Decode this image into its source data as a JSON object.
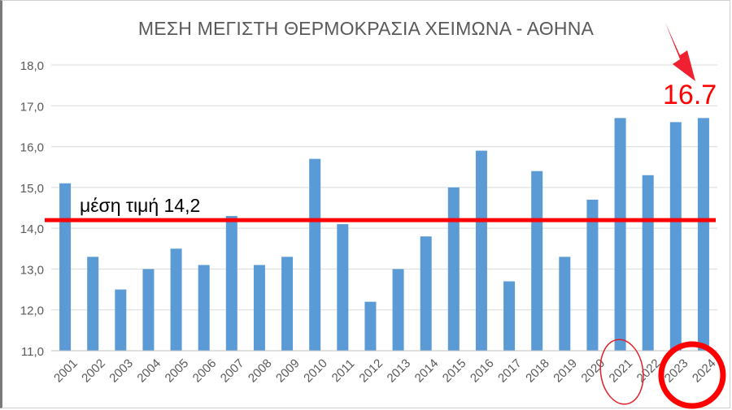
{
  "chart_data": {
    "type": "bar",
    "title": "ΜΕΣΗ ΜΕΓΙΣΤΗ ΘΕΡΜΟΚΡΑΣΙΑ ΧΕΙΜΩΝΑ -  ΑΘΗΝΑ",
    "categories": [
      "2001",
      "2002",
      "2003",
      "2004",
      "2005",
      "2006",
      "2007",
      "2008",
      "2009",
      "2010",
      "2011",
      "2012",
      "2013",
      "2014",
      "2015",
      "2016",
      "2017",
      "2018",
      "2019",
      "2020",
      "2021",
      "2022",
      "2023",
      "2024"
    ],
    "values": [
      15.1,
      13.3,
      12.5,
      13.0,
      13.5,
      13.1,
      14.3,
      13.1,
      13.3,
      15.7,
      14.1,
      12.2,
      13.0,
      13.8,
      15.0,
      15.9,
      12.7,
      15.4,
      13.3,
      14.7,
      16.7,
      15.3,
      16.6,
      16.7
    ],
    "ylim": [
      11.0,
      18.0
    ],
    "yticks": [
      "11,0",
      "12,0",
      "13,0",
      "14,0",
      "15,0",
      "16,0",
      "17,0",
      "18,0"
    ],
    "grid": true,
    "bar_color": "#5b9bd5",
    "average": {
      "label": "μέση τιμή 14,2",
      "value": 14.2,
      "color": "#ff0000"
    },
    "highlight": {
      "text": "16.7",
      "color": "#ff0000",
      "categories": [
        "2021",
        "2024"
      ]
    }
  }
}
